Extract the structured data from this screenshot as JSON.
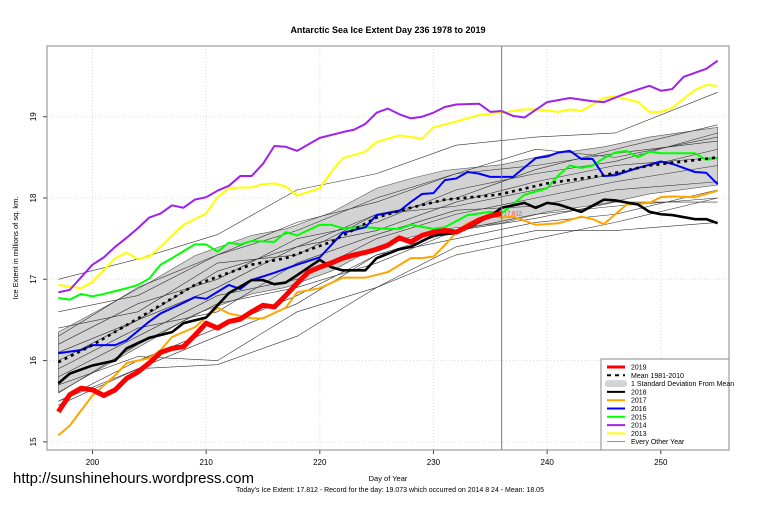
{
  "chart_data": {
    "type": "line",
    "title": "Antarctic Sea Ice Extent Day 236 1978 to 2019",
    "xlabel": "Day of Year",
    "ylabel": "Ice Extent in millions of sq. km.",
    "xlim": [
      196,
      256
    ],
    "ylim": [
      14.9,
      19.87
    ],
    "xticks": [
      200,
      210,
      220,
      230,
      240,
      250
    ],
    "yticks": [
      15,
      16,
      17,
      18,
      19
    ],
    "grid": true,
    "current_day_marker": 236,
    "legend_position": "bottom-right",
    "footer": "Today's Ice Extent: 17.812  - Record for the day: 19.073 which occurred on 2014 8 24  - Mean: 18.05",
    "watermark": "http://sunshinehours.wordpress.com",
    "today_label": "17.812",
    "std_band": {
      "name": "1 Standard Deviation From Mean",
      "color": "#d3d3d3",
      "days": [
        197,
        205,
        209,
        214,
        217,
        221,
        225,
        228,
        231,
        236,
        240,
        245,
        249,
        255
      ],
      "lower": [
        15.61,
        16.24,
        16.57,
        16.82,
        16.9,
        17.1,
        17.4,
        17.52,
        17.62,
        17.69,
        17.83,
        17.93,
        18.05,
        18.16
      ],
      "upper": [
        16.35,
        16.96,
        17.29,
        17.54,
        17.62,
        17.82,
        18.12,
        18.24,
        18.34,
        18.41,
        18.53,
        18.63,
        18.75,
        18.87
      ]
    },
    "background_series": {
      "name": "Every Other Year",
      "color": "#333333",
      "days": [
        197,
        204,
        211,
        218,
        225,
        232,
        239,
        246,
        255
      ],
      "lines": [
        [
          17.0,
          17.25,
          17.55,
          18.1,
          18.3,
          18.65,
          18.75,
          18.8,
          19.3
        ],
        [
          15.5,
          16.0,
          16.4,
          16.8,
          17.3,
          17.6,
          17.8,
          17.9,
          18.0
        ],
        [
          16.3,
          16.9,
          17.3,
          17.6,
          18.0,
          18.3,
          18.4,
          18.55,
          18.7
        ],
        [
          15.45,
          15.9,
          15.95,
          16.3,
          16.9,
          17.4,
          17.6,
          17.6,
          17.7
        ],
        [
          16.1,
          16.5,
          17.1,
          17.4,
          17.8,
          17.9,
          18.1,
          18.3,
          18.6
        ],
        [
          15.8,
          16.3,
          16.8,
          17.0,
          17.5,
          17.8,
          18.0,
          18.2,
          18.4
        ],
        [
          16.6,
          16.8,
          17.3,
          17.7,
          17.95,
          18.3,
          18.6,
          18.5,
          18.75
        ],
        [
          15.9,
          16.4,
          16.6,
          17.2,
          17.55,
          17.85,
          17.9,
          18.1,
          18.2
        ],
        [
          15.6,
          16.2,
          16.7,
          16.9,
          17.2,
          17.6,
          17.75,
          17.95,
          17.95
        ],
        [
          16.2,
          16.7,
          17.0,
          17.5,
          17.7,
          18.1,
          18.3,
          18.45,
          18.8
        ],
        [
          15.7,
          16.05,
          16.0,
          16.6,
          16.9,
          17.3,
          17.5,
          17.7,
          18.0
        ],
        [
          16.4,
          16.6,
          17.2,
          17.3,
          17.8,
          18.0,
          18.35,
          18.6,
          18.9
        ],
        [
          16.0,
          16.5,
          16.9,
          17.4,
          17.6,
          17.95,
          18.2,
          18.4,
          18.5
        ],
        [
          15.5,
          15.9,
          16.3,
          16.7,
          17.3,
          17.5,
          17.7,
          17.8,
          18.1
        ]
      ]
    },
    "series": [
      {
        "name": "2013",
        "color": "#ffff00",
        "width": 2,
        "days": [
          197,
          199,
          200,
          202,
          203,
          204,
          205,
          206,
          207,
          208,
          209,
          210,
          211,
          212,
          213,
          214,
          215,
          216,
          217,
          218,
          220,
          221,
          222,
          224,
          225,
          227,
          228,
          229,
          230,
          232,
          234,
          236,
          238,
          239,
          241,
          242,
          243,
          245,
          246,
          248,
          249,
          250,
          251,
          253,
          254,
          255
        ],
        "values": [
          16.93,
          16.89,
          16.97,
          17.26,
          17.33,
          17.25,
          17.28,
          17.4,
          17.54,
          17.67,
          17.74,
          17.81,
          18.01,
          18.12,
          18.13,
          18.13,
          18.17,
          18.18,
          18.14,
          18.03,
          18.12,
          18.32,
          18.49,
          18.57,
          18.69,
          18.77,
          18.75,
          18.73,
          18.87,
          18.94,
          19.02,
          19.05,
          19.09,
          19.09,
          19.06,
          19.09,
          19.07,
          19.23,
          19.25,
          19.18,
          19.06,
          19.06,
          19.11,
          19.33,
          19.39,
          19.38
        ]
      },
      {
        "name": "2014",
        "color": "#a020f0",
        "width": 2,
        "days": [
          197,
          198,
          200,
          201,
          202,
          203,
          204,
          205,
          206,
          207,
          208,
          209,
          210,
          211,
          212,
          213,
          214,
          215,
          216,
          217,
          218,
          220,
          222,
          223,
          224,
          225,
          226,
          227,
          228,
          229,
          230,
          231,
          232,
          234,
          235,
          236,
          237,
          238,
          240,
          242,
          244,
          245,
          247,
          249,
          250,
          251,
          252,
          253,
          254,
          255
        ],
        "values": [
          16.84,
          16.87,
          17.18,
          17.27,
          17.4,
          17.51,
          17.63,
          17.76,
          17.81,
          17.91,
          17.88,
          17.98,
          18.01,
          18.09,
          18.15,
          18.27,
          18.27,
          18.42,
          18.64,
          18.63,
          18.58,
          18.74,
          18.81,
          18.84,
          18.91,
          19.05,
          19.1,
          19.03,
          18.98,
          19.0,
          19.05,
          19.12,
          19.15,
          19.16,
          19.06,
          19.07,
          19.01,
          18.99,
          19.18,
          19.23,
          19.19,
          19.18,
          19.29,
          19.38,
          19.32,
          19.34,
          19.49,
          19.54,
          19.59,
          19.69
        ]
      },
      {
        "name": "2015",
        "color": "#00ff00",
        "width": 2,
        "days": [
          197,
          198,
          199,
          200,
          201,
          203,
          204,
          205,
          206,
          207,
          209,
          210,
          211,
          212,
          213,
          214,
          216,
          217,
          218,
          220,
          221,
          222,
          224,
          226,
          227,
          228,
          230,
          231,
          233,
          235,
          236,
          238,
          240,
          241,
          242,
          243,
          244,
          245,
          246,
          247,
          248,
          249,
          250,
          253,
          254,
          255
        ],
        "values": [
          16.77,
          16.75,
          16.82,
          16.79,
          16.82,
          16.89,
          16.93,
          17.01,
          17.18,
          17.26,
          17.43,
          17.43,
          17.34,
          17.45,
          17.43,
          17.47,
          17.46,
          17.58,
          17.54,
          17.67,
          17.67,
          17.63,
          17.64,
          17.62,
          17.62,
          17.67,
          17.62,
          17.64,
          17.79,
          17.83,
          17.81,
          18.04,
          18.12,
          18.28,
          18.4,
          18.37,
          18.4,
          18.49,
          18.56,
          18.58,
          18.5,
          18.57,
          18.55,
          18.55,
          18.47,
          18.49
        ]
      },
      {
        "name": "2016",
        "color": "#0000ff",
        "width": 2,
        "days": [
          197,
          199,
          200,
          202,
          203,
          205,
          206,
          208,
          209,
          210,
          212,
          213,
          214,
          216,
          217,
          218,
          220,
          222,
          224,
          225,
          227,
          228,
          229,
          230,
          231,
          232,
          233,
          234,
          235,
          236,
          237,
          239,
          240,
          241,
          242,
          243,
          244,
          245,
          246,
          248,
          250,
          251,
          253,
          254,
          255
        ],
        "values": [
          16.09,
          16.13,
          16.19,
          16.19,
          16.25,
          16.48,
          16.58,
          16.71,
          16.78,
          16.76,
          16.93,
          16.88,
          16.99,
          17.08,
          17.13,
          17.18,
          17.27,
          17.57,
          17.64,
          17.79,
          17.84,
          17.95,
          18.05,
          18.06,
          18.22,
          18.24,
          18.32,
          18.3,
          18.26,
          18.26,
          18.26,
          18.49,
          18.51,
          18.56,
          18.58,
          18.48,
          18.48,
          18.27,
          18.28,
          18.37,
          18.45,
          18.42,
          18.32,
          18.31,
          18.17
        ]
      },
      {
        "name": "2017",
        "color": "#ffa500",
        "width": 2,
        "days": [
          197,
          198,
          200,
          202,
          203,
          205,
          206,
          207,
          209,
          211,
          212,
          214,
          215,
          217,
          218,
          220,
          222,
          224,
          226,
          228,
          229,
          230,
          231,
          232,
          233,
          235,
          236,
          237,
          239,
          241,
          243,
          244,
          245,
          247,
          249,
          250,
          251,
          253,
          255
        ],
        "values": [
          15.08,
          15.2,
          15.57,
          15.82,
          15.97,
          16.03,
          16.13,
          16.29,
          16.41,
          16.65,
          16.58,
          16.52,
          16.52,
          16.65,
          16.84,
          16.89,
          17.02,
          17.02,
          17.09,
          17.26,
          17.26,
          17.28,
          17.42,
          17.58,
          17.69,
          17.79,
          17.76,
          17.77,
          17.67,
          17.69,
          17.77,
          17.74,
          17.68,
          17.92,
          17.94,
          18.01,
          18.02,
          18.01,
          18.09
        ]
      },
      {
        "name": "2018",
        "color": "#000000",
        "width": 2.6,
        "days": [
          197,
          198,
          200,
          202,
          203,
          205,
          207,
          208,
          210,
          212,
          214,
          215,
          216,
          217,
          218,
          220,
          221,
          222,
          224,
          225,
          227,
          228,
          230,
          232,
          233,
          235,
          236,
          238,
          239,
          240,
          241,
          243,
          245,
          246,
          248,
          249,
          250,
          251,
          253,
          254,
          255
        ],
        "values": [
          15.72,
          15.84,
          15.94,
          16.0,
          16.15,
          16.28,
          16.35,
          16.46,
          16.53,
          16.83,
          16.99,
          16.99,
          16.94,
          16.96,
          17.05,
          17.24,
          17.15,
          17.11,
          17.11,
          17.26,
          17.37,
          17.4,
          17.54,
          17.57,
          17.63,
          17.78,
          17.88,
          17.94,
          17.88,
          17.94,
          17.92,
          17.83,
          17.98,
          17.97,
          17.92,
          17.83,
          17.8,
          17.79,
          17.74,
          17.74,
          17.69
        ]
      },
      {
        "name": "Mean 1981-2010",
        "color": "#000000",
        "width": 2.6,
        "dashed": true,
        "days": [
          197,
          200,
          205,
          209,
          214,
          217,
          221,
          225,
          228,
          231,
          235,
          236,
          240,
          245,
          249,
          255
        ],
        "values": [
          15.98,
          16.19,
          16.6,
          16.93,
          17.18,
          17.26,
          17.46,
          17.76,
          17.88,
          17.98,
          18.03,
          18.05,
          18.18,
          18.28,
          18.4,
          18.5
        ]
      },
      {
        "name": "2019",
        "color": "#ff0000",
        "width": 5,
        "days": [
          197,
          198,
          199,
          200,
          201,
          202,
          203,
          204,
          205,
          206,
          207,
          208,
          209,
          210,
          211,
          212,
          213,
          214,
          215,
          216,
          217,
          218,
          219,
          220,
          221,
          222,
          223,
          224,
          225,
          226,
          227,
          228,
          229,
          230,
          231,
          232,
          233,
          234,
          235,
          236
        ],
        "values": [
          15.37,
          15.58,
          15.66,
          15.64,
          15.57,
          15.64,
          15.78,
          15.86,
          15.97,
          16.1,
          16.15,
          16.17,
          16.31,
          16.46,
          16.4,
          16.48,
          16.51,
          16.6,
          16.68,
          16.66,
          16.8,
          16.95,
          17.09,
          17.15,
          17.2,
          17.26,
          17.3,
          17.33,
          17.37,
          17.42,
          17.51,
          17.46,
          17.54,
          17.58,
          17.6,
          17.58,
          17.65,
          17.73,
          17.78,
          17.81
        ]
      }
    ],
    "legend": [
      {
        "label": "2019",
        "color": "#ff0000",
        "style": "thick"
      },
      {
        "label": "Mean 1981-2010",
        "color": "#000000",
        "style": "dashed"
      },
      {
        "label": "1 Standard Deviation From Mean",
        "color": "#d3d3d3",
        "style": "band"
      },
      {
        "label": "2018",
        "color": "#000000",
        "style": "line"
      },
      {
        "label": "2017",
        "color": "#ffa500",
        "style": "line"
      },
      {
        "label": "2016",
        "color": "#0000ff",
        "style": "line"
      },
      {
        "label": "2015",
        "color": "#00ff00",
        "style": "line"
      },
      {
        "label": "2014",
        "color": "#a020f0",
        "style": "line"
      },
      {
        "label": "2013",
        "color": "#ffff00",
        "style": "line"
      },
      {
        "label": "Every Other Year",
        "color": "#555555",
        "style": "thin"
      }
    ]
  }
}
